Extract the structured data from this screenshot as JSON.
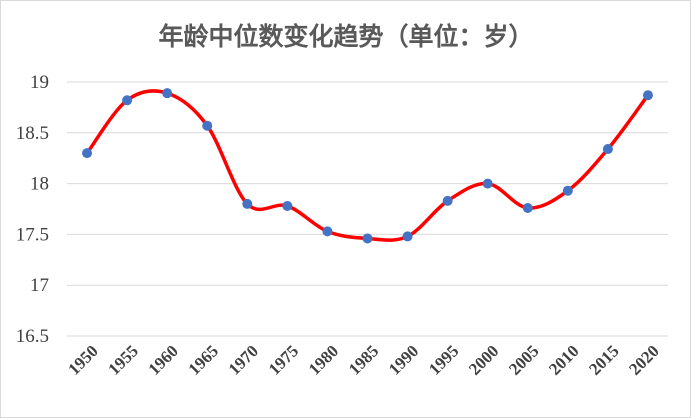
{
  "chart_data": {
    "type": "line",
    "title": "年龄中位数变化趋势（单位：岁）",
    "xlabel": "",
    "ylabel": "",
    "x": [
      "1950",
      "1955",
      "1960",
      "1965",
      "1970",
      "1975",
      "1980",
      "1985",
      "1990",
      "1995",
      "2000",
      "2005",
      "2010",
      "2015",
      "2020"
    ],
    "series": [
      {
        "values": [
          18.3,
          18.82,
          18.89,
          18.57,
          17.8,
          17.78,
          17.53,
          17.46,
          17.48,
          17.83,
          18.0,
          17.76,
          17.93,
          18.34,
          18.87
        ]
      }
    ],
    "ylim": [
      16.5,
      19
    ],
    "yticks": [
      "16.5",
      "17",
      "17.5",
      "18",
      "18.5",
      "19"
    ],
    "grid": true,
    "smooth": true,
    "line_color": "#ff0000",
    "marker_color": "#4472c4"
  }
}
